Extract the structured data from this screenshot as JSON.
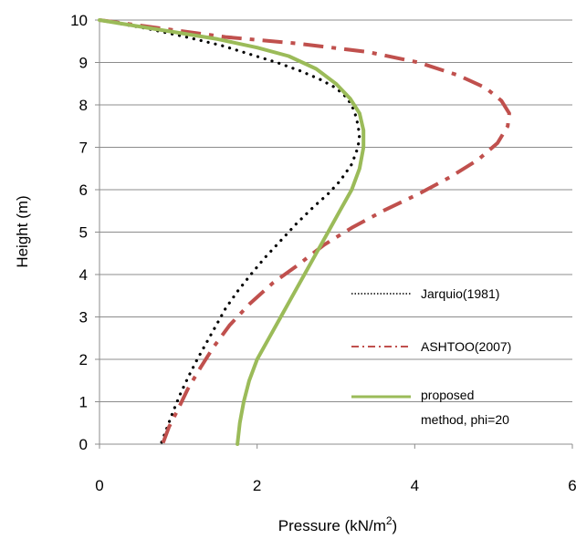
{
  "chart_data": {
    "type": "line",
    "title": "",
    "xlabel": "Pressure (kN/m",
    "xlabel_superscript": "2",
    "xlabel_suffix": ")",
    "ylabel": "Height (m)",
    "xlim": [
      0,
      6
    ],
    "ylim": [
      0,
      10
    ],
    "x_ticks": [
      "0",
      "2",
      "4",
      "6"
    ],
    "y_ticks": [
      "0",
      "1",
      "2",
      "3",
      "4",
      "5",
      "6",
      "7",
      "8",
      "9",
      "10"
    ],
    "grid": "horizontal",
    "legend_position": "bottom-right",
    "series": [
      {
        "name": "Jarquio(1981)",
        "style": "dotted",
        "color": "#000000",
        "points": [
          [
            0.0,
            10.0
          ],
          [
            0.6,
            9.8
          ],
          [
            1.1,
            9.6
          ],
          [
            1.55,
            9.4
          ],
          [
            1.9,
            9.2
          ],
          [
            2.25,
            9.0
          ],
          [
            2.55,
            8.8
          ],
          [
            2.8,
            8.6
          ],
          [
            3.0,
            8.4
          ],
          [
            3.12,
            8.2
          ],
          [
            3.2,
            8.0
          ],
          [
            3.26,
            7.7
          ],
          [
            3.3,
            7.3
          ],
          [
            3.28,
            7.0
          ],
          [
            3.2,
            6.6
          ],
          [
            3.05,
            6.2
          ],
          [
            2.9,
            5.9
          ],
          [
            2.72,
            5.6
          ],
          [
            2.5,
            5.2
          ],
          [
            2.3,
            4.8
          ],
          [
            2.1,
            4.4
          ],
          [
            1.92,
            4.0
          ],
          [
            1.75,
            3.6
          ],
          [
            1.6,
            3.2
          ],
          [
            1.48,
            2.8
          ],
          [
            1.36,
            2.4
          ],
          [
            1.24,
            2.0
          ],
          [
            1.13,
            1.6
          ],
          [
            1.03,
            1.2
          ],
          [
            0.94,
            0.8
          ],
          [
            0.86,
            0.4
          ],
          [
            0.78,
            0.0
          ]
        ]
      },
      {
        "name": "ASHTOO(2007)",
        "style": "dash-dot",
        "color": "#c0504d",
        "points": [
          [
            0.0,
            10.0
          ],
          [
            0.8,
            9.8
          ],
          [
            1.6,
            9.6
          ],
          [
            2.5,
            9.45
          ],
          [
            3.4,
            9.25
          ],
          [
            4.05,
            9.0
          ],
          [
            4.55,
            8.7
          ],
          [
            4.9,
            8.4
          ],
          [
            5.1,
            8.1
          ],
          [
            5.2,
            7.8
          ],
          [
            5.18,
            7.5
          ],
          [
            5.05,
            7.1
          ],
          [
            4.8,
            6.7
          ],
          [
            4.45,
            6.3
          ],
          [
            4.05,
            5.9
          ],
          [
            3.6,
            5.5
          ],
          [
            3.2,
            5.1
          ],
          [
            2.85,
            4.7
          ],
          [
            2.5,
            4.2
          ],
          [
            2.2,
            3.8
          ],
          [
            1.9,
            3.3
          ],
          [
            1.65,
            2.8
          ],
          [
            1.45,
            2.3
          ],
          [
            1.28,
            1.8
          ],
          [
            1.12,
            1.3
          ],
          [
            0.99,
            0.8
          ],
          [
            0.88,
            0.4
          ],
          [
            0.8,
            0.0
          ]
        ]
      },
      {
        "name": "proposed method, phi=20",
        "style": "solid",
        "color": "#9bbb59",
        "points": [
          [
            0.0,
            10.0
          ],
          [
            0.5,
            9.85
          ],
          [
            1.0,
            9.7
          ],
          [
            1.5,
            9.55
          ],
          [
            2.0,
            9.35
          ],
          [
            2.4,
            9.15
          ],
          [
            2.75,
            8.85
          ],
          [
            3.0,
            8.5
          ],
          [
            3.18,
            8.15
          ],
          [
            3.3,
            7.8
          ],
          [
            3.35,
            7.4
          ],
          [
            3.35,
            7.0
          ],
          [
            3.3,
            6.5
          ],
          [
            3.2,
            6.0
          ],
          [
            3.05,
            5.5
          ],
          [
            2.9,
            5.0
          ],
          [
            2.75,
            4.5
          ],
          [
            2.6,
            4.0
          ],
          [
            2.45,
            3.5
          ],
          [
            2.3,
            3.0
          ],
          [
            2.15,
            2.5
          ],
          [
            2.0,
            2.0
          ],
          [
            1.9,
            1.5
          ],
          [
            1.83,
            1.0
          ],
          [
            1.78,
            0.5
          ],
          [
            1.75,
            0.0
          ]
        ]
      }
    ],
    "legend": {
      "jarquio": "Jarquio(1981)",
      "ashtoo": "ASHTOO(2007)",
      "proposed_line1": "proposed",
      "proposed_line2": "method, phi=20"
    }
  }
}
